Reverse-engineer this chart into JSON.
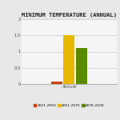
{
  "title": "MINIMUM TEMPERATURE (ANNUAL)",
  "categories": [
    "Annual"
  ],
  "series": [
    {
      "label": "2021-2050",
      "values": [
        0.08
      ],
      "color": "#CC4400"
    },
    {
      "label": "2051-2075",
      "values": [
        1.5
      ],
      "color": "#E8B800"
    },
    {
      "label": "2076-2100",
      "values": [
        1.1
      ],
      "color": "#5A8A00"
    }
  ],
  "ylim": [
    0,
    2.0
  ],
  "yticks": [
    0,
    0.5,
    1.0,
    1.5,
    2.0
  ],
  "bg_color": "#e8e8e8",
  "plot_bg_color": "#f5f5f5",
  "title_fontsize": 5.0,
  "tick_fontsize": 3.8,
  "legend_fontsize": 3.2,
  "bar_width": 0.12,
  "bar_gap": 0.01,
  "grid": true
}
